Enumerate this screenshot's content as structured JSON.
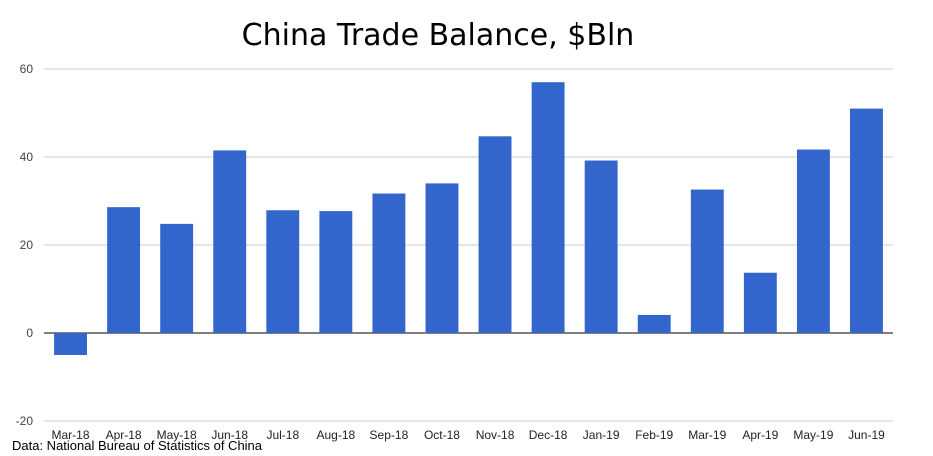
{
  "chart_data": {
    "type": "bar",
    "title": "China Trade Balance, $Bln",
    "source": "Data: National Bureau of Statistics of China",
    "categories": [
      "Mar-18",
      "Apr-18",
      "May-18",
      "Jun-18",
      "Jul-18",
      "Aug-18",
      "Sep-18",
      "Oct-18",
      "Nov-18",
      "Dec-18",
      "Jan-19",
      "Feb-19",
      "Mar-19",
      "Apr-19",
      "May-19",
      "Jun-19"
    ],
    "values": [
      -5.0,
      28.6,
      24.8,
      41.5,
      27.9,
      27.7,
      31.7,
      34.0,
      44.7,
      57.0,
      39.2,
      4.1,
      32.6,
      13.7,
      41.7,
      51.0
    ],
    "ylim": [
      -20,
      60
    ],
    "yticks": [
      "-20",
      "0",
      "20",
      "40",
      "60"
    ],
    "grid": true,
    "bar_color": "#3366cc"
  }
}
